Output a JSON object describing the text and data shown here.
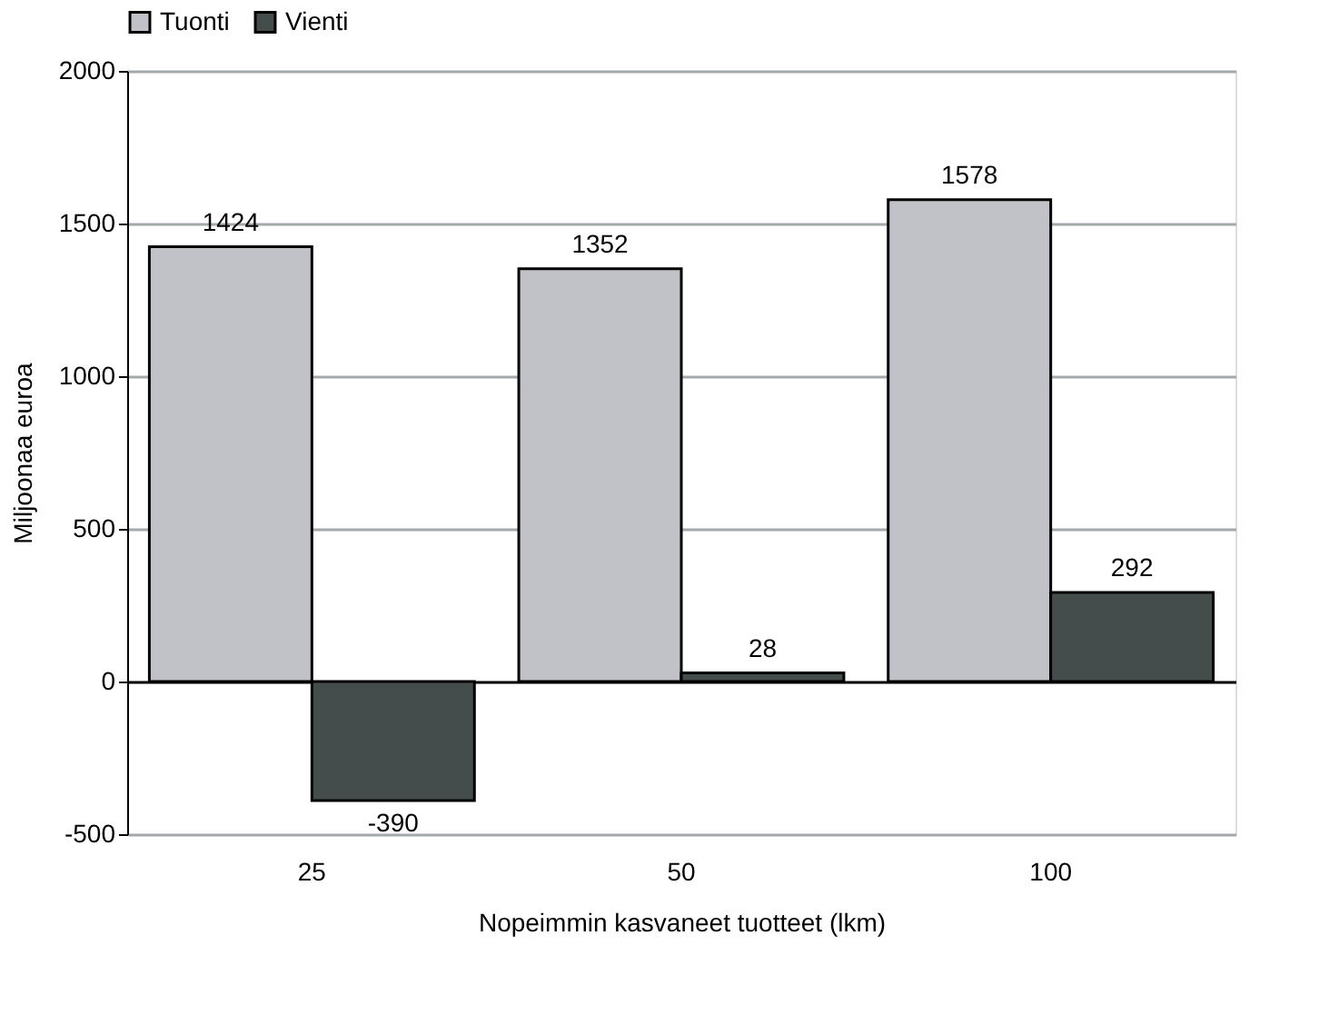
{
  "chart_data": {
    "type": "bar",
    "xlabel": "Nopeimmin kasvaneet tuotteet (lkm)",
    "ylabel": "Miljoonaa euroa",
    "categories": [
      "25",
      "50",
      "100"
    ],
    "series": [
      {
        "name": "Tuonti",
        "color": "#c0c2c8",
        "values": [
          1424,
          1352,
          1578
        ]
      },
      {
        "name": "Vienti",
        "color": "#454c4c",
        "values": [
          -390,
          28,
          292
        ]
      }
    ],
    "ylim": [
      -500,
      2000
    ],
    "yticks": [
      -500,
      0,
      500,
      1000,
      1500,
      2000
    ],
    "grid": "y",
    "legend": "top",
    "data_labels": true
  }
}
